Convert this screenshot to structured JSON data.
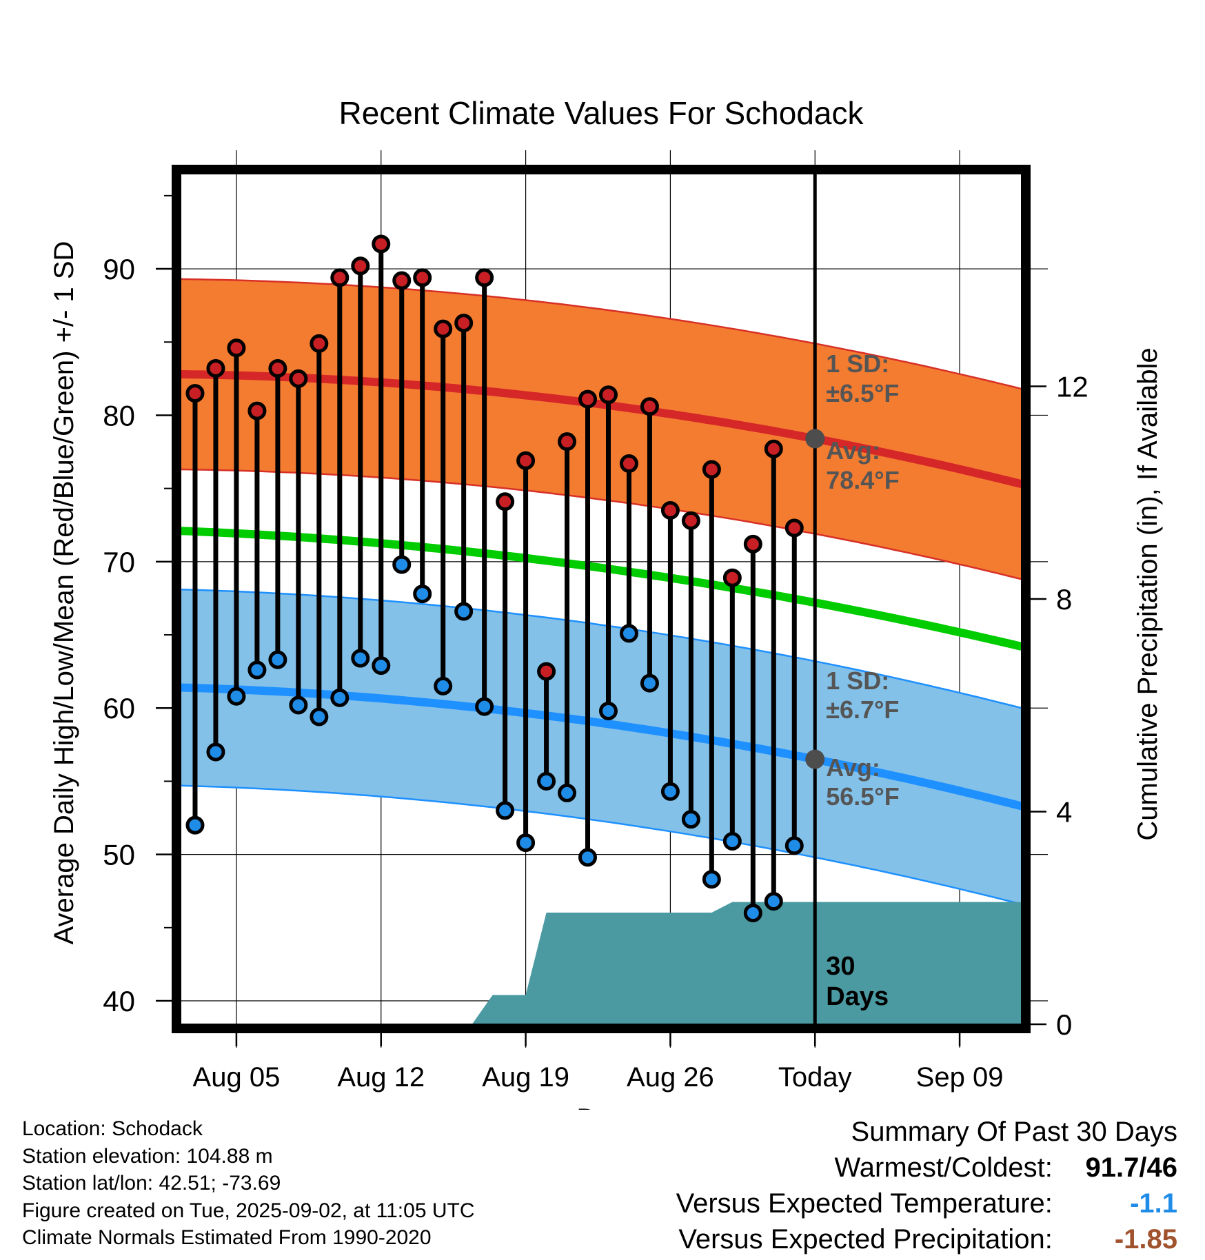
{
  "chart_data": {
    "type": "line",
    "title": "Recent Climate Values For Schodack",
    "xlabel": "Day",
    "ylabel_left": "Average Daily High/Low/Mean (Red/Blue/Green) +/- 1 SD",
    "ylabel_right": "Cumulative Precipitation (in), If Available",
    "y_ticks_left": [
      40,
      50,
      60,
      70,
      80,
      90
    ],
    "y_ticks_right": [
      0,
      4,
      8,
      12
    ],
    "ylim_left": [
      38.4,
      96.5
    ],
    "ylim_right": [
      0,
      16
    ],
    "x_ticks": [
      {
        "day": 5,
        "label": "Aug 05"
      },
      {
        "day": 12,
        "label": "Aug 12"
      },
      {
        "day": 19,
        "label": "Aug 19"
      },
      {
        "day": 26,
        "label": "Aug 26"
      },
      {
        "day": 33,
        "label": "Today"
      },
      {
        "day": 40,
        "label": "Sep 09"
      }
    ],
    "xlim": [
      2.3,
      43
    ],
    "today_day": 33,
    "observations": [
      {
        "day": 3,
        "high": 81.5,
        "low": 52
      },
      {
        "day": 4,
        "high": 83.2,
        "low": 57
      },
      {
        "day": 5,
        "high": 84.6,
        "low": 60.8
      },
      {
        "day": 6,
        "high": 80.3,
        "low": 62.6
      },
      {
        "day": 7,
        "high": 83.2,
        "low": 63.3
      },
      {
        "day": 8,
        "high": 82.5,
        "low": 60.2
      },
      {
        "day": 9,
        "high": 84.9,
        "low": 59.4
      },
      {
        "day": 10,
        "high": 89.4,
        "low": 60.7
      },
      {
        "day": 11,
        "high": 90.2,
        "low": 63.4
      },
      {
        "day": 12,
        "high": 91.7,
        "low": 62.9
      },
      {
        "day": 13,
        "high": 89.2,
        "low": 69.8
      },
      {
        "day": 14,
        "high": 89.4,
        "low": 67.8
      },
      {
        "day": 15,
        "high": 85.9,
        "low": 61.5
      },
      {
        "day": 16,
        "high": 86.3,
        "low": 66.6
      },
      {
        "day": 17,
        "high": 89.4,
        "low": 60.1
      },
      {
        "day": 18,
        "high": 74.1,
        "low": 53
      },
      {
        "day": 19,
        "high": 76.9,
        "low": 50.8
      },
      {
        "day": 20,
        "high": 62.5,
        "low": 55
      },
      {
        "day": 21,
        "high": 78.2,
        "low": 54.2
      },
      {
        "day": 22,
        "high": 81.1,
        "low": 49.8
      },
      {
        "day": 23,
        "high": 81.4,
        "low": 59.8
      },
      {
        "day": 24,
        "high": 76.7,
        "low": 65.1
      },
      {
        "day": 25,
        "high": 80.6,
        "low": 61.7
      },
      {
        "day": 26,
        "high": 73.5,
        "low": 54.3
      },
      {
        "day": 27,
        "high": 72.8,
        "low": 52.4
      },
      {
        "day": 28,
        "high": 76.3,
        "low": 48.3
      },
      {
        "day": 29,
        "high": 68.9,
        "low": 50.9
      },
      {
        "day": 30,
        "high": 71.2,
        "low": 46
      },
      {
        "day": 31,
        "high": 77.7,
        "low": 46.8
      },
      {
        "day": 32,
        "high": 72.3,
        "low": 50.6
      }
    ],
    "normal_days": [
      2.3,
      33,
      43
    ],
    "normal_high": [
      82.8,
      78.4,
      75.3
    ],
    "normal_high_sd": 6.5,
    "normal_mean": [
      72.1,
      67.2,
      64.2
    ],
    "normal_low": [
      61.4,
      56.5,
      53.3
    ],
    "normal_low_sd": 6.7,
    "precip_cumulative": [
      {
        "day": 2.3,
        "value": 0
      },
      {
        "day": 16.4,
        "value": 0
      },
      {
        "day": 17.4,
        "value": 0.55
      },
      {
        "day": 19,
        "value": 0.55
      },
      {
        "day": 20,
        "value": 2.1
      },
      {
        "day": 28,
        "value": 2.1
      },
      {
        "day": 29,
        "value": 2.3
      },
      {
        "day": 43,
        "value": 2.3
      }
    ],
    "annotations": {
      "high_sd_label": "1 SD:",
      "high_sd_value": "±6.5°F",
      "high_avg_label": "Avg:",
      "high_avg_value": "78.4°F",
      "low_sd_label": "1 SD:",
      "low_sd_value": "±6.7°F",
      "low_avg_label": "Avg:",
      "low_avg_value": "56.5°F",
      "period_number": "30",
      "period_unit": "Days"
    },
    "colors": {
      "high_band": "#f47c30",
      "high_edge": "#d73027",
      "high_avg": "#d62728",
      "mean": "#00cc00",
      "low_band": "#83c1e9",
      "low_edge": "#1e90ff",
      "low_avg": "#1e90ff",
      "precip": "#4b9aa2",
      "high_marker": "#c71f24",
      "low_marker": "#1f8ce8",
      "annotation": "#555555"
    }
  },
  "footer": {
    "location": "Location: Schodack",
    "elevation": "Station elevation: 104.88 m",
    "latlon": "Station lat/lon: 42.51; -73.69",
    "created": "Figure created on Tue, 2025-09-02, at 11:05 UTC",
    "normals": "Climate Normals Estimated From 1990-2020"
  },
  "summary": {
    "title": "Summary Of Past 30 Days",
    "warm_cold_label": "Warmest/Coldest:",
    "warm_cold_value": "91.7/46",
    "temp_label": "Versus Expected Temperature:",
    "temp_value": "-1.1",
    "temp_color": "#1f8ce8",
    "precip_label": "Versus Expected Precipitation:",
    "precip_value": "-1.85",
    "precip_color": "#a0522d"
  }
}
